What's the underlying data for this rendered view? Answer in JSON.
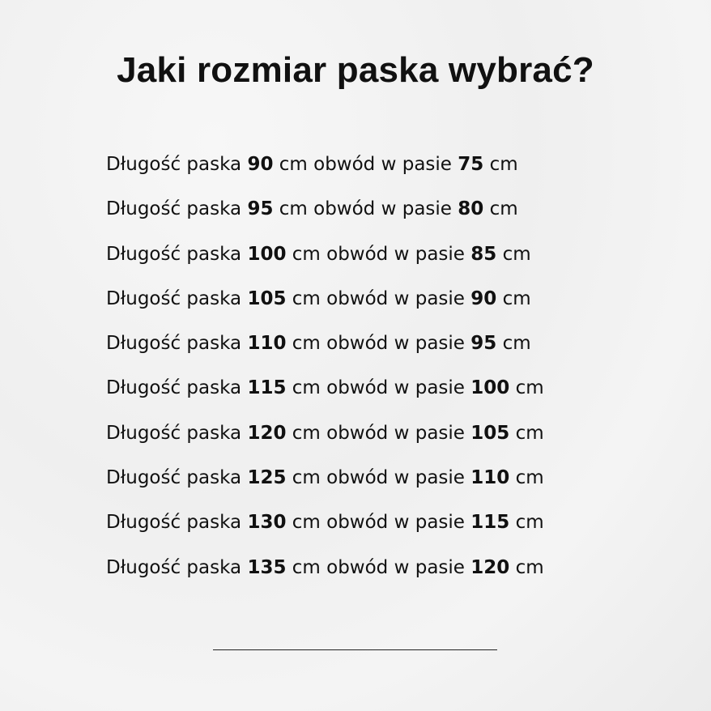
{
  "title": "Jaki rozmiar paska wybrać?",
  "rows": [
    {
      "prefix": "Długość paska",
      "length": "90",
      "mid": "cm obwód w pasie",
      "waist": "75",
      "unit": "cm"
    },
    {
      "prefix": "Długość paska",
      "length": "95",
      "mid": "cm obwód w pasie",
      "waist": "80",
      "unit": "cm"
    },
    {
      "prefix": "Długość paska",
      "length": "100",
      "mid": "cm obwód w pasie",
      "waist": "85",
      "unit": "cm"
    },
    {
      "prefix": "Długość paska",
      "length": "105",
      "mid": "cm obwód w pasie",
      "waist": "90",
      "unit": "cm"
    },
    {
      "prefix": "Długość paska",
      "length": "110",
      "mid": "cm obwód w pasie",
      "waist": "95",
      "unit": "cm"
    },
    {
      "prefix": "Długość paska",
      "length": "115",
      "mid": "cm obwód w pasie",
      "waist": "100",
      "unit": "cm"
    },
    {
      "prefix": "Długość paska",
      "length": "120",
      "mid": "cm obwód w pasie",
      "waist": "105",
      "unit": "cm"
    },
    {
      "prefix": "Długość paska",
      "length": "125",
      "mid": "cm obwód w pasie",
      "waist": "110",
      "unit": "cm"
    },
    {
      "prefix": "Długość paska",
      "length": "130",
      "mid": "cm obwód w pasie",
      "waist": "115",
      "unit": "cm"
    },
    {
      "prefix": "Długość paska",
      "length": "135",
      "mid": "cm obwód w pasie",
      "waist": "120",
      "unit": "cm"
    }
  ]
}
